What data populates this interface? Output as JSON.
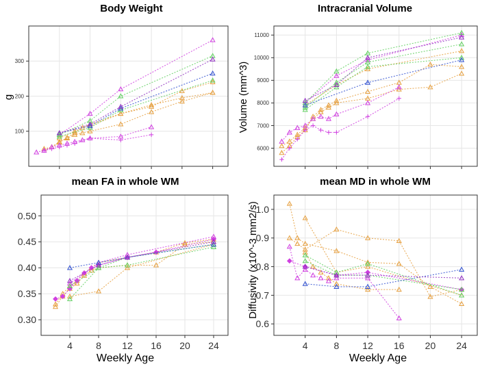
{
  "colors": {
    "orange": "#e6a040",
    "magenta": "#d040e0",
    "green": "#60d060",
    "blue": "#3050d0",
    "purple": "#9030c0",
    "grid": "#e6e6e6",
    "frame": "#333333"
  },
  "chart_data": [
    {
      "id": "body-weight",
      "type": "line",
      "title": "Body Weight",
      "xlabel": "",
      "ylabel": "g",
      "xlim": [
        0,
        26
      ],
      "ylim": [
        0,
        400
      ],
      "xgrid": [
        4,
        8,
        12,
        16,
        20,
        24
      ],
      "ygrid": [
        100,
        200,
        300
      ],
      "yticks": [
        "100",
        "200",
        "300"
      ],
      "xticks": [],
      "series": [
        {
          "name": "orange-1",
          "color": "orange",
          "marker": "tri",
          "x": [
            2,
            3,
            4,
            5,
            6,
            7,
            8,
            12,
            16,
            20,
            24
          ],
          "y": [
            50,
            55,
            70,
            80,
            90,
            95,
            100,
            120,
            155,
            185,
            210
          ]
        },
        {
          "name": "orange-2",
          "color": "orange",
          "marker": "tri",
          "x": [
            2,
            3,
            4,
            5,
            6,
            7,
            8,
            12,
            16,
            20,
            24
          ],
          "y": [
            45,
            55,
            68,
            82,
            95,
            110,
            115,
            150,
            175,
            195,
            210
          ]
        },
        {
          "name": "orange-3",
          "color": "orange",
          "marker": "tri",
          "x": [
            4,
            6,
            8,
            12,
            16,
            20,
            24
          ],
          "y": [
            80,
            100,
            120,
            150,
            170,
            215,
            240
          ]
        },
        {
          "name": "magenta-1",
          "color": "magenta",
          "marker": "tri",
          "x": [
            1,
            2,
            3,
            4,
            5,
            6,
            7,
            8,
            12,
            16
          ],
          "y": [
            40,
            45,
            55,
            60,
            65,
            70,
            75,
            80,
            85,
            112
          ]
        },
        {
          "name": "magenta-2",
          "color": "magenta",
          "marker": "plus",
          "x": [
            2,
            3,
            4,
            5,
            6,
            8,
            12,
            16
          ],
          "y": [
            45,
            50,
            55,
            60,
            65,
            80,
            75,
            90
          ]
        },
        {
          "name": "magenta-3",
          "color": "magenta",
          "marker": "tri",
          "x": [
            4,
            8,
            12,
            24
          ],
          "y": [
            90,
            150,
            220,
            360
          ]
        },
        {
          "name": "green-1",
          "color": "green",
          "marker": "tri",
          "x": [
            4,
            8,
            12,
            24
          ],
          "y": [
            90,
            130,
            200,
            315
          ]
        },
        {
          "name": "green-2",
          "color": "green",
          "marker": "tri",
          "x": [
            4,
            8,
            12,
            24
          ],
          "y": [
            85,
            110,
            160,
            245
          ]
        },
        {
          "name": "blue-1",
          "color": "blue",
          "marker": "tri",
          "x": [
            4,
            8,
            12,
            24
          ],
          "y": [
            95,
            115,
            165,
            265
          ]
        },
        {
          "name": "purple-1",
          "color": "purple",
          "marker": "tri",
          "x": [
            4,
            8,
            12,
            24
          ],
          "y": [
            95,
            120,
            170,
            305
          ]
        }
      ]
    },
    {
      "id": "intracranial-volume",
      "type": "line",
      "title": "Intracranial Volume",
      "xlabel": "",
      "ylabel": "Volume (mm^3)",
      "xlim": [
        0,
        26
      ],
      "ylim": [
        5200,
        11400
      ],
      "xgrid": [
        4,
        8,
        12,
        16,
        20,
        24
      ],
      "ygrid": [
        6000,
        7000,
        8000,
        9000,
        10000,
        11000
      ],
      "yticks": [
        "6000",
        "7000",
        "8000",
        "9000",
        "10000",
        "11000"
      ],
      "xticks": [],
      "series": [
        {
          "name": "orange-1",
          "color": "orange",
          "marker": "tri",
          "x": [
            1,
            2,
            3,
            4,
            5,
            6,
            7,
            8,
            12,
            16,
            20,
            24
          ],
          "y": [
            6100,
            6300,
            6600,
            6900,
            7300,
            7600,
            7800,
            8000,
            8200,
            8600,
            8700,
            9300
          ]
        },
        {
          "name": "orange-2",
          "color": "orange",
          "marker": "tri",
          "x": [
            1,
            2,
            3,
            4,
            5,
            6,
            7,
            8,
            12,
            16,
            20,
            24
          ],
          "y": [
            5800,
            6100,
            6500,
            6800,
            7400,
            7700,
            7900,
            8100,
            8500,
            8900,
            9700,
            9600
          ]
        },
        {
          "name": "orange-3",
          "color": "orange",
          "marker": "tri",
          "x": [
            4,
            8,
            12,
            24
          ],
          "y": [
            7900,
            8800,
            9500,
            10300
          ]
        },
        {
          "name": "magenta-1",
          "color": "magenta",
          "marker": "plus",
          "x": [
            1,
            2,
            3,
            4,
            5,
            6,
            7,
            8,
            12,
            16
          ],
          "y": [
            5500,
            6000,
            6400,
            6800,
            7000,
            6800,
            6700,
            6700,
            7400,
            8200
          ]
        },
        {
          "name": "magenta-2",
          "color": "magenta",
          "marker": "tri",
          "x": [
            1,
            2,
            3,
            4,
            5,
            6,
            7,
            8,
            12,
            16
          ],
          "y": [
            6300,
            6700,
            6900,
            7000,
            7300,
            7400,
            7300,
            7500,
            8000,
            8700
          ]
        },
        {
          "name": "magenta-3",
          "color": "magenta",
          "marker": "tri",
          "x": [
            4,
            8,
            12,
            24
          ],
          "y": [
            8000,
            9200,
            9900,
            11000
          ]
        },
        {
          "name": "green-1",
          "color": "green",
          "marker": "tri",
          "x": [
            4,
            8,
            12,
            24
          ],
          "y": [
            8000,
            9400,
            10200,
            11100
          ]
        },
        {
          "name": "green-2",
          "color": "green",
          "marker": "tri",
          "x": [
            4,
            8,
            12,
            24
          ],
          "y": [
            7800,
            8900,
            9800,
            10600
          ]
        },
        {
          "name": "green-3",
          "color": "green",
          "marker": "tri",
          "x": [
            4,
            8,
            12,
            24
          ],
          "y": [
            7700,
            8700,
            9600,
            10000
          ]
        },
        {
          "name": "blue-1",
          "color": "blue",
          "marker": "tri",
          "x": [
            4,
            12,
            24
          ],
          "y": [
            7900,
            8900,
            9900
          ]
        },
        {
          "name": "purple-1",
          "color": "purple",
          "marker": "tri",
          "x": [
            4,
            8,
            12,
            24
          ],
          "y": [
            8100,
            8800,
            10000,
            10900
          ]
        }
      ]
    },
    {
      "id": "mean-fa",
      "type": "line",
      "title": "mean FA in whole WM",
      "xlabel": "Weekly Age",
      "ylabel": "",
      "xlim": [
        0,
        26
      ],
      "ylim": [
        0.27,
        0.54
      ],
      "xgrid": [
        4,
        8,
        12,
        16,
        20,
        24
      ],
      "ygrid": [
        0.3,
        0.35,
        0.4,
        0.45,
        0.5
      ],
      "yticks": [
        "0.30",
        "0.35",
        "0.40",
        "0.45",
        "0.50"
      ],
      "xticks": [
        "4",
        "8",
        "12",
        "16",
        "20",
        "24"
      ],
      "series": [
        {
          "name": "orange-1",
          "color": "orange",
          "marker": "tri",
          "x": [
            2,
            3,
            4,
            5,
            6,
            7,
            8,
            12,
            16,
            20,
            24
          ],
          "y": [
            0.325,
            0.345,
            0.36,
            0.37,
            0.385,
            0.395,
            0.4,
            0.405,
            0.405,
            0.445,
            0.45
          ]
        },
        {
          "name": "orange-2",
          "color": "orange",
          "marker": "tri",
          "x": [
            2,
            3,
            4,
            5,
            6,
            7,
            8,
            12,
            16,
            20,
            24
          ],
          "y": [
            0.33,
            0.35,
            0.365,
            0.375,
            0.39,
            0.4,
            0.41,
            0.42,
            0.43,
            0.448,
            0.455
          ]
        },
        {
          "name": "orange-3",
          "color": "orange",
          "marker": "tri",
          "x": [
            4,
            8,
            12,
            24
          ],
          "y": [
            0.345,
            0.355,
            0.4,
            0.445
          ]
        },
        {
          "name": "magenta-1",
          "color": "magenta",
          "marker": "diamond",
          "x": [
            2,
            3,
            4,
            5,
            6,
            7,
            8,
            12,
            16,
            24
          ],
          "y": [
            0.34,
            0.345,
            0.36,
            0.375,
            0.39,
            0.4,
            0.405,
            0.42,
            0.43,
            0.455
          ]
        },
        {
          "name": "magenta-2",
          "color": "magenta",
          "marker": "tri",
          "x": [
            4,
            8,
            12,
            24
          ],
          "y": [
            0.37,
            0.41,
            0.425,
            0.46
          ]
        },
        {
          "name": "green-1",
          "color": "green",
          "marker": "tri",
          "x": [
            4,
            8,
            12,
            24
          ],
          "y": [
            0.34,
            0.4,
            0.405,
            0.44
          ]
        },
        {
          "name": "green-2",
          "color": "green",
          "marker": "tri",
          "x": [
            4,
            8,
            12,
            24
          ],
          "y": [
            0.365,
            0.4,
            0.42,
            0.445
          ]
        },
        {
          "name": "blue-1",
          "color": "blue",
          "marker": "tri",
          "x": [
            4,
            8,
            12,
            24
          ],
          "y": [
            0.4,
            0.41,
            0.42,
            0.445
          ]
        },
        {
          "name": "purple-1",
          "color": "purple",
          "marker": "tri",
          "x": [
            4,
            8,
            12,
            24
          ],
          "y": [
            0.375,
            0.405,
            0.42,
            0.45
          ]
        }
      ]
    },
    {
      "id": "mean-md",
      "type": "line",
      "title": "mean MD in whole WM",
      "xlabel": "Weekly Age",
      "ylabel": "Diffusivity (x10^-3 mm2/s)",
      "xlim": [
        0,
        26
      ],
      "ylim": [
        0.56,
        1.05
      ],
      "xgrid": [
        4,
        8,
        12,
        16,
        20,
        24
      ],
      "ygrid": [
        0.6,
        0.7,
        0.8,
        0.9,
        1.0
      ],
      "yticks": [
        "0.6",
        "0.7",
        "0.8",
        "0.9",
        "1.0"
      ],
      "xticks": [
        "4",
        "8",
        "12",
        "16",
        "20",
        "24"
      ],
      "series": [
        {
          "name": "orange-1",
          "color": "orange",
          "marker": "tri",
          "x": [
            2,
            3,
            4,
            8,
            12,
            16,
            20,
            24
          ],
          "y": [
            1.02,
            0.9,
            0.88,
            0.855,
            0.815,
            0.81,
            0.73,
            0.67
          ]
        },
        {
          "name": "orange-2",
          "color": "orange",
          "marker": "tri",
          "x": [
            2,
            3,
            4,
            8,
            12,
            16,
            20,
            24
          ],
          "y": [
            0.9,
            0.88,
            0.86,
            0.93,
            0.9,
            0.89,
            0.695,
            0.72
          ]
        },
        {
          "name": "orange-3",
          "color": "orange",
          "marker": "tri",
          "x": [
            4,
            8,
            12,
            24
          ],
          "y": [
            0.97,
            0.78,
            0.8,
            0.7
          ]
        },
        {
          "name": "orange-4",
          "color": "orange",
          "marker": "tri",
          "x": [
            4,
            5,
            6,
            7,
            8,
            12,
            16
          ],
          "y": [
            0.85,
            0.8,
            0.78,
            0.76,
            0.74,
            0.72,
            0.72
          ]
        },
        {
          "name": "magenta-1",
          "color": "magenta",
          "marker": "tri",
          "x": [
            2,
            3,
            4,
            5,
            6,
            7,
            8,
            12,
            16
          ],
          "y": [
            0.87,
            0.76,
            0.79,
            0.77,
            0.76,
            0.75,
            0.76,
            0.76,
            0.62
          ]
        },
        {
          "name": "magenta-2",
          "color": "magenta",
          "marker": "diamond",
          "x": [
            2,
            4,
            8,
            12,
            24
          ],
          "y": [
            0.82,
            0.8,
            0.77,
            0.78,
            0.72
          ]
        },
        {
          "name": "green-1",
          "color": "green",
          "marker": "tri",
          "x": [
            4,
            8,
            12,
            24
          ],
          "y": [
            0.84,
            0.78,
            0.81,
            0.7
          ]
        },
        {
          "name": "green-2",
          "color": "green",
          "marker": "tri",
          "x": [
            4,
            8,
            12,
            24
          ],
          "y": [
            0.82,
            0.77,
            0.77,
            0.72
          ]
        },
        {
          "name": "blue-1",
          "color": "blue",
          "marker": "tri",
          "x": [
            4,
            8,
            12,
            24
          ],
          "y": [
            0.74,
            0.73,
            0.73,
            0.79
          ]
        },
        {
          "name": "purple-1",
          "color": "purple",
          "marker": "tri",
          "x": [
            4,
            8,
            12,
            24
          ],
          "y": [
            0.8,
            0.77,
            0.77,
            0.76
          ]
        }
      ]
    }
  ]
}
